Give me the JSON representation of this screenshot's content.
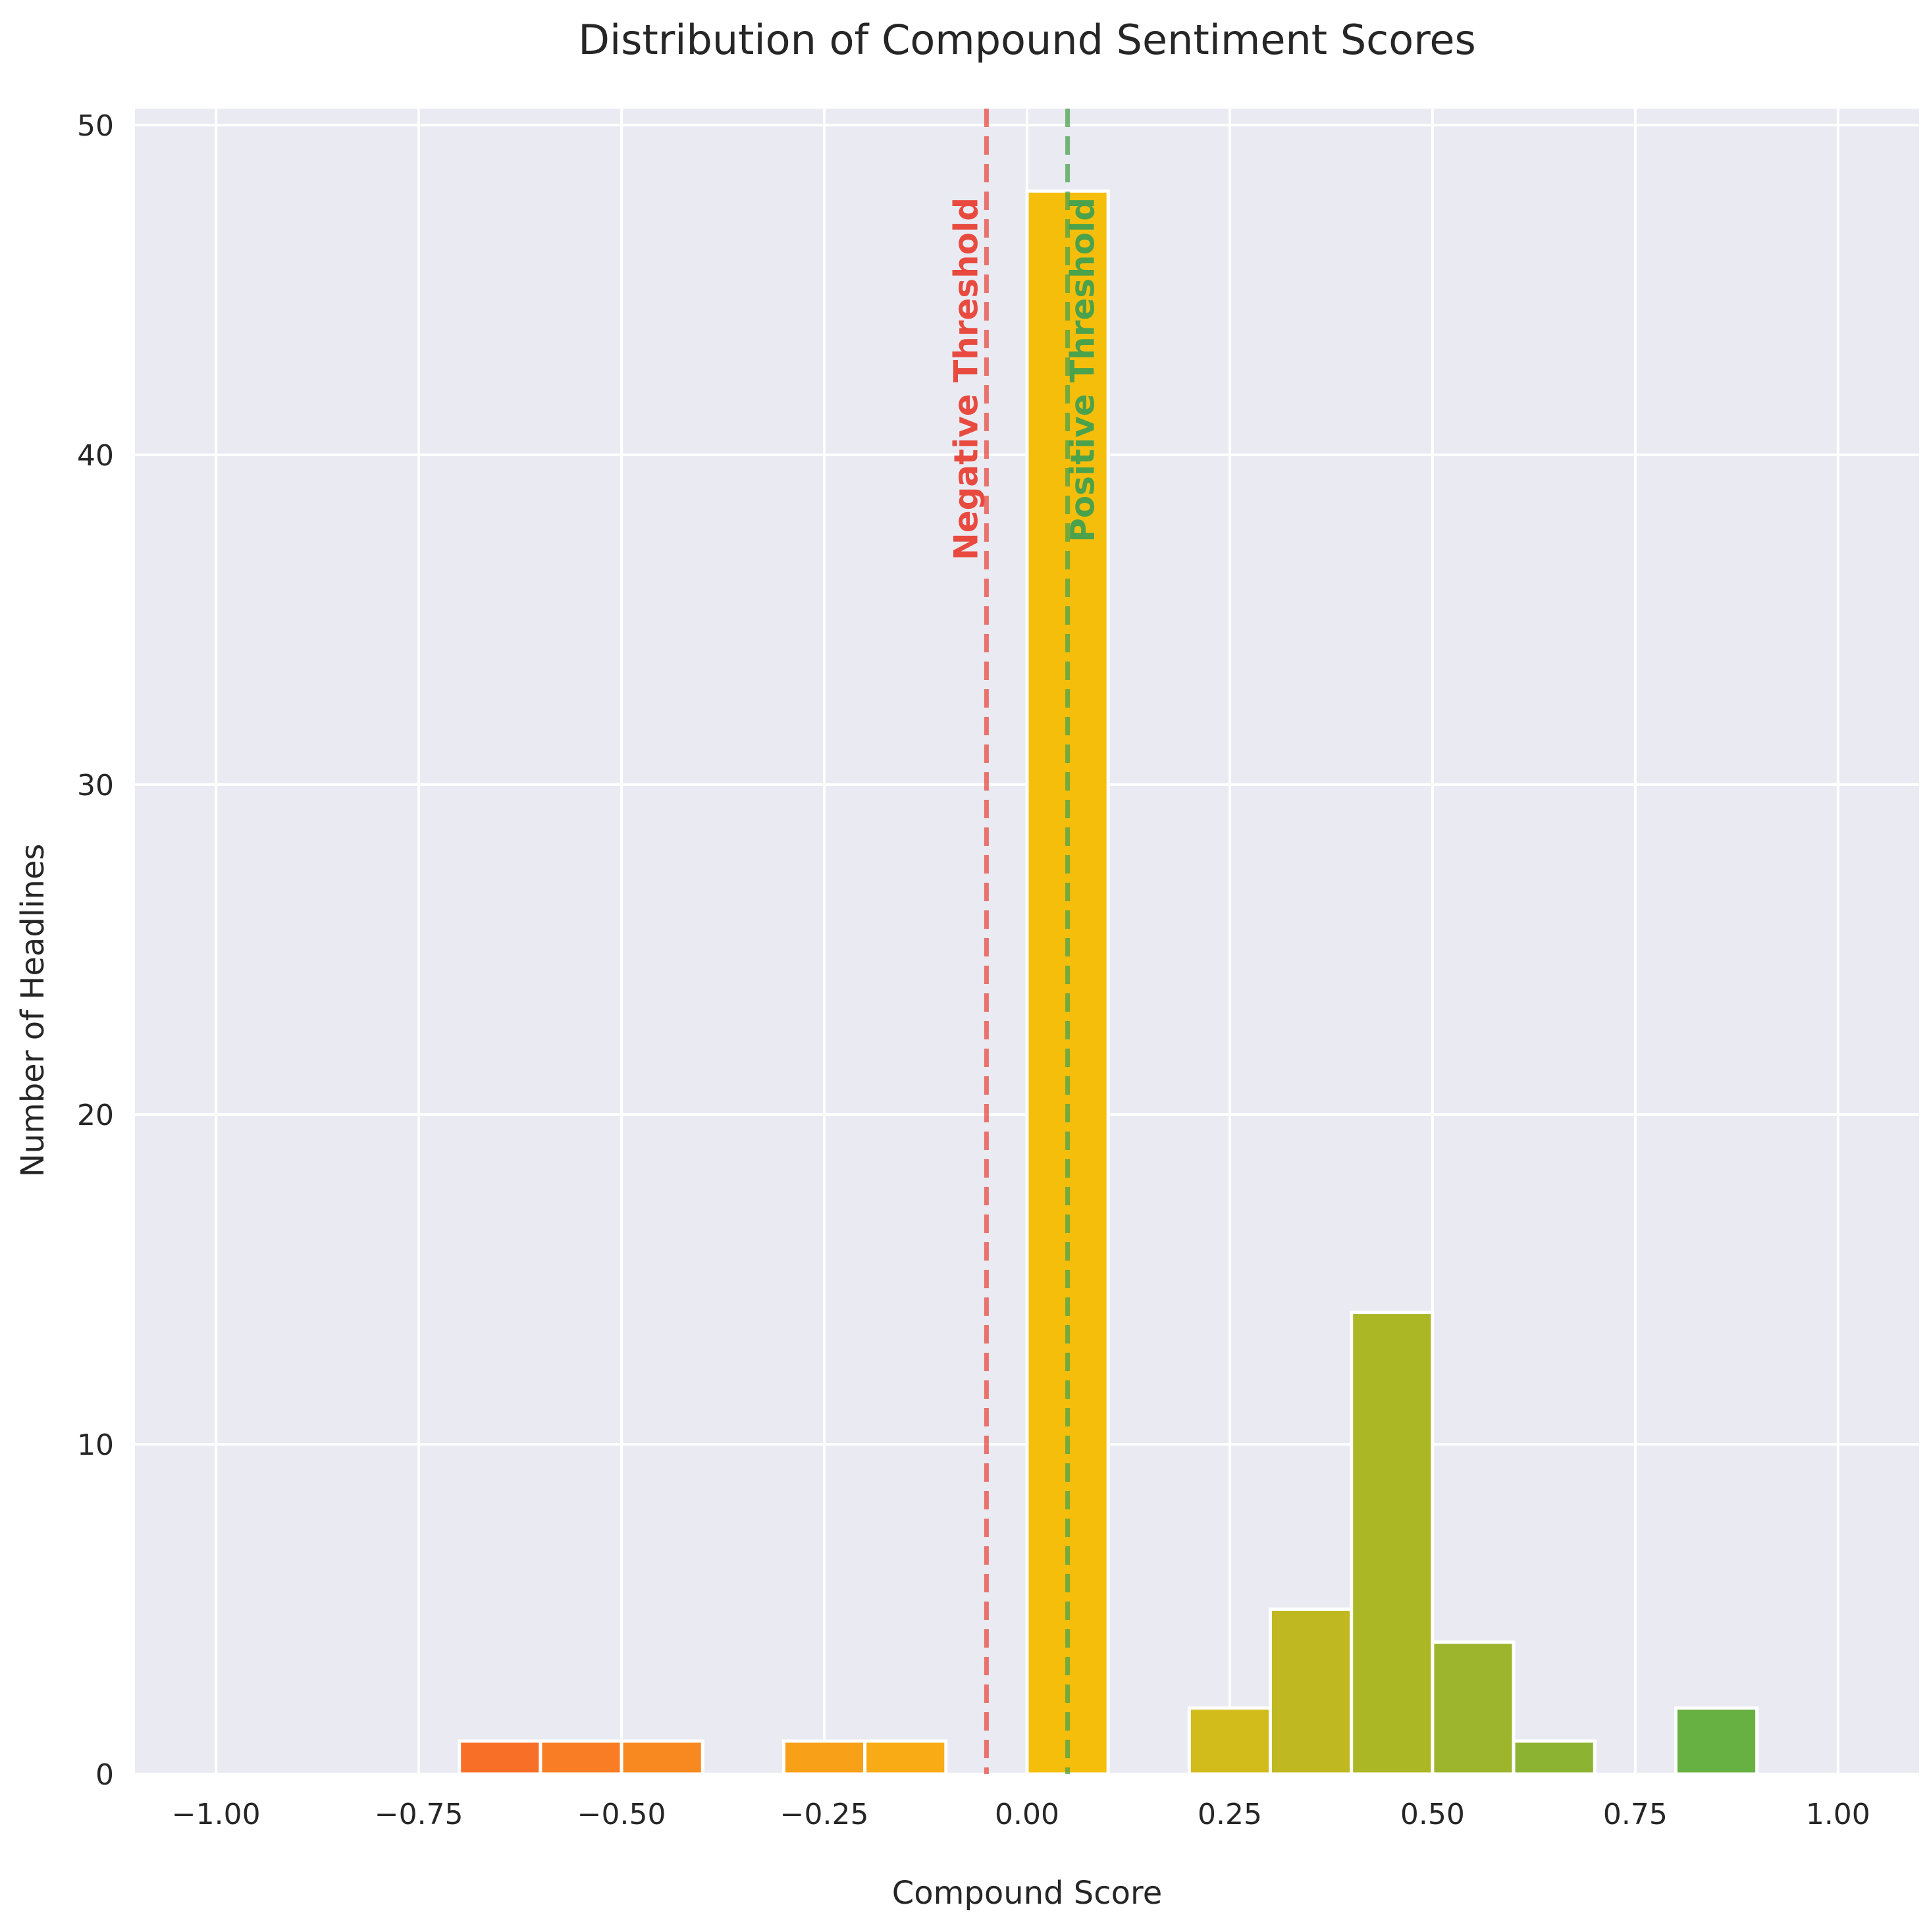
{
  "chart_data": {
    "type": "bar",
    "title": "Distribution of Compound Sentiment Scores",
    "xlabel": "Compound Score",
    "ylabel": "Number of Headlines",
    "xlim": [
      -1.1,
      1.1
    ],
    "ylim": [
      0,
      50.5
    ],
    "xticks": [
      -1.0,
      -0.75,
      -0.5,
      -0.25,
      0.0,
      0.25,
      0.5,
      0.75,
      1.0
    ],
    "xtick_labels": [
      "−1.00",
      "−0.75",
      "−0.50",
      "−0.25",
      "0.00",
      "0.25",
      "0.50",
      "0.75",
      "1.00"
    ],
    "yticks": [
      0,
      10,
      20,
      30,
      40,
      50
    ],
    "ytick_labels": [
      "0",
      "10",
      "20",
      "30",
      "40",
      "50"
    ],
    "grid": true,
    "background_color": "#eaeaf2",
    "bins": [
      {
        "x0": -1.0,
        "x1": -0.9,
        "count": 0,
        "color": "#f8501c"
      },
      {
        "x0": -0.9,
        "x1": -0.8,
        "count": 0,
        "color": "#f85a1f"
      },
      {
        "x0": -0.8,
        "x1": -0.7,
        "count": 0,
        "color": "#f86522"
      },
      {
        "x0": -0.7,
        "x1": -0.6,
        "count": 1,
        "color": "#f87028"
      },
      {
        "x0": -0.6,
        "x1": -0.5,
        "count": 1,
        "color": "#f87d25"
      },
      {
        "x0": -0.5,
        "x1": -0.4,
        "count": 1,
        "color": "#f88920"
      },
      {
        "x0": -0.4,
        "x1": -0.3,
        "count": 0,
        "color": "#f8951b"
      },
      {
        "x0": -0.3,
        "x1": -0.2,
        "count": 1,
        "color": "#f8a017"
      },
      {
        "x0": -0.2,
        "x1": -0.1,
        "count": 1,
        "color": "#f8ab14"
      },
      {
        "x0": -0.1,
        "x1": 0.0,
        "count": 0,
        "color": "#f5b60f"
      },
      {
        "x0": 0.0,
        "x1": 0.1,
        "count": 48,
        "color": "#f5be0b"
      },
      {
        "x0": 0.1,
        "x1": 0.2,
        "count": 0,
        "color": "#e2bd18"
      },
      {
        "x0": 0.2,
        "x1": 0.3,
        "count": 2,
        "color": "#d2bc1c"
      },
      {
        "x0": 0.3,
        "x1": 0.4,
        "count": 5,
        "color": "#c0b820"
      },
      {
        "x0": 0.4,
        "x1": 0.5,
        "count": 14,
        "color": "#acb726"
      },
      {
        "x0": 0.5,
        "x1": 0.6,
        "count": 4,
        "color": "#9db52d"
      },
      {
        "x0": 0.6,
        "x1": 0.7,
        "count": 1,
        "color": "#8db333"
      },
      {
        "x0": 0.7,
        "x1": 0.8,
        "count": 0,
        "color": "#7ab33b"
      },
      {
        "x0": 0.8,
        "x1": 0.9,
        "count": 2,
        "color": "#67b142"
      },
      {
        "x0": 0.9,
        "x1": 1.0,
        "count": 0,
        "color": "#55ad47"
      }
    ],
    "thresholds": [
      {
        "name": "negative",
        "x": -0.05,
        "label": "Negative Threshold",
        "color": "#e84a3f"
      },
      {
        "name": "positive",
        "x": 0.05,
        "label": "Positive Threshold",
        "color": "#4aa24c"
      }
    ]
  }
}
